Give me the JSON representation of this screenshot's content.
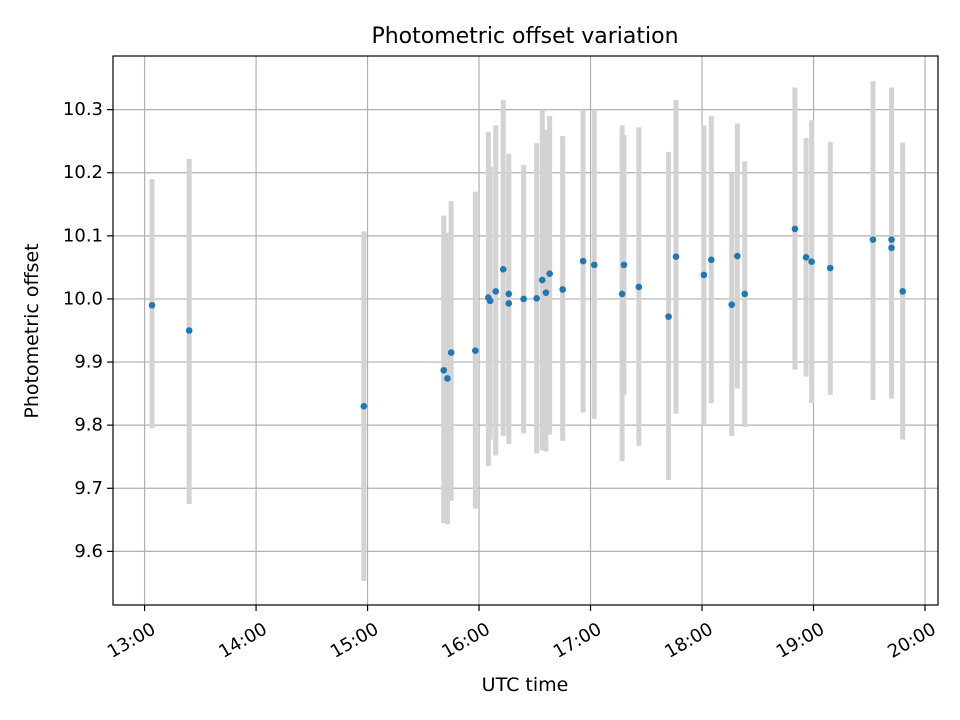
{
  "chart_data": {
    "type": "scatter",
    "title": "Photometric offset variation",
    "xlabel": "UTC time",
    "ylabel": "Photometric offset",
    "x_ticks": [
      "13:00",
      "14:00",
      "15:00",
      "16:00",
      "17:00",
      "18:00",
      "19:00",
      "20:00"
    ],
    "y_ticks": [
      "9.6",
      "9.7",
      "9.8",
      "9.9",
      "10.0",
      "10.1",
      "10.2",
      "10.3"
    ],
    "xlim": [
      "12:43",
      "20:07"
    ],
    "ylim": [
      9.515,
      10.385
    ],
    "grid": true,
    "point_color": "#1f77b4",
    "errorbar_color": "#d3d3d3",
    "points": [
      {
        "x": "13:04",
        "y": 9.99,
        "low": 9.795,
        "high": 10.19
      },
      {
        "x": "13:24",
        "y": 9.95,
        "low": 9.675,
        "high": 10.222
      },
      {
        "x": "14:58",
        "y": 9.83,
        "low": 9.553,
        "high": 10.107
      },
      {
        "x": "15:41",
        "y": 9.887,
        "low": 9.645,
        "high": 10.132
      },
      {
        "x": "15:43",
        "y": 9.874,
        "low": 9.643,
        "high": 10.105
      },
      {
        "x": "15:45",
        "y": 9.915,
        "low": 9.68,
        "high": 10.155
      },
      {
        "x": "15:58",
        "y": 9.918,
        "low": 9.668,
        "high": 10.17
      },
      {
        "x": "16:05",
        "y": 10.002,
        "low": 9.735,
        "high": 10.265
      },
      {
        "x": "16:06",
        "y": 9.997,
        "low": 9.777,
        "high": 10.21
      },
      {
        "x": "16:09",
        "y": 10.012,
        "low": 9.752,
        "high": 10.275
      },
      {
        "x": "16:13",
        "y": 10.047,
        "low": 9.783,
        "high": 10.315
      },
      {
        "x": "16:16",
        "y": 10.008,
        "low": 9.77,
        "high": 10.23
      },
      {
        "x": "16:16",
        "y": 9.993,
        "low": 9.785,
        "high": 10.207
      },
      {
        "x": "16:24",
        "y": 10.0,
        "low": 9.787,
        "high": 10.212
      },
      {
        "x": "16:31",
        "y": 10.001,
        "low": 9.755,
        "high": 10.247
      },
      {
        "x": "16:34",
        "y": 10.03,
        "low": 9.76,
        "high": 10.3
      },
      {
        "x": "16:36",
        "y": 10.01,
        "low": 9.758,
        "high": 10.268
      },
      {
        "x": "16:38",
        "y": 10.04,
        "low": 9.785,
        "high": 10.29
      },
      {
        "x": "16:45",
        "y": 10.015,
        "low": 9.775,
        "high": 10.258
      },
      {
        "x": "16:56",
        "y": 10.06,
        "low": 9.82,
        "high": 10.3
      },
      {
        "x": "17:02",
        "y": 10.054,
        "low": 9.81,
        "high": 10.3
      },
      {
        "x": "17:17",
        "y": 10.008,
        "low": 9.743,
        "high": 10.275
      },
      {
        "x": "17:18",
        "y": 10.054,
        "low": 9.848,
        "high": 10.26
      },
      {
        "x": "17:26",
        "y": 10.019,
        "low": 9.767,
        "high": 10.272
      },
      {
        "x": "17:42",
        "y": 9.972,
        "low": 9.713,
        "high": 10.233
      },
      {
        "x": "17:46",
        "y": 10.067,
        "low": 9.818,
        "high": 10.315
      },
      {
        "x": "18:01",
        "y": 10.038,
        "low": 9.8,
        "high": 10.275
      },
      {
        "x": "18:05",
        "y": 10.062,
        "low": 9.835,
        "high": 10.29
      },
      {
        "x": "18:16",
        "y": 9.991,
        "low": 9.783,
        "high": 10.2
      },
      {
        "x": "18:19",
        "y": 10.068,
        "low": 9.858,
        "high": 10.278
      },
      {
        "x": "18:23",
        "y": 10.008,
        "low": 9.797,
        "high": 10.218
      },
      {
        "x": "18:50",
        "y": 10.111,
        "low": 9.888,
        "high": 10.335
      },
      {
        "x": "18:56",
        "y": 10.066,
        "low": 9.877,
        "high": 10.255
      },
      {
        "x": "18:59",
        "y": 10.059,
        "low": 9.835,
        "high": 10.283
      },
      {
        "x": "19:09",
        "y": 10.049,
        "low": 9.848,
        "high": 10.249
      },
      {
        "x": "19:32",
        "y": 10.094,
        "low": 9.84,
        "high": 10.345
      },
      {
        "x": "19:42",
        "y": 10.094,
        "low": 9.85,
        "high": 10.335
      },
      {
        "x": "19:42",
        "y": 10.081,
        "low": 9.842,
        "high": 10.32
      },
      {
        "x": "19:48",
        "y": 10.012,
        "low": 9.777,
        "high": 10.248
      }
    ]
  }
}
